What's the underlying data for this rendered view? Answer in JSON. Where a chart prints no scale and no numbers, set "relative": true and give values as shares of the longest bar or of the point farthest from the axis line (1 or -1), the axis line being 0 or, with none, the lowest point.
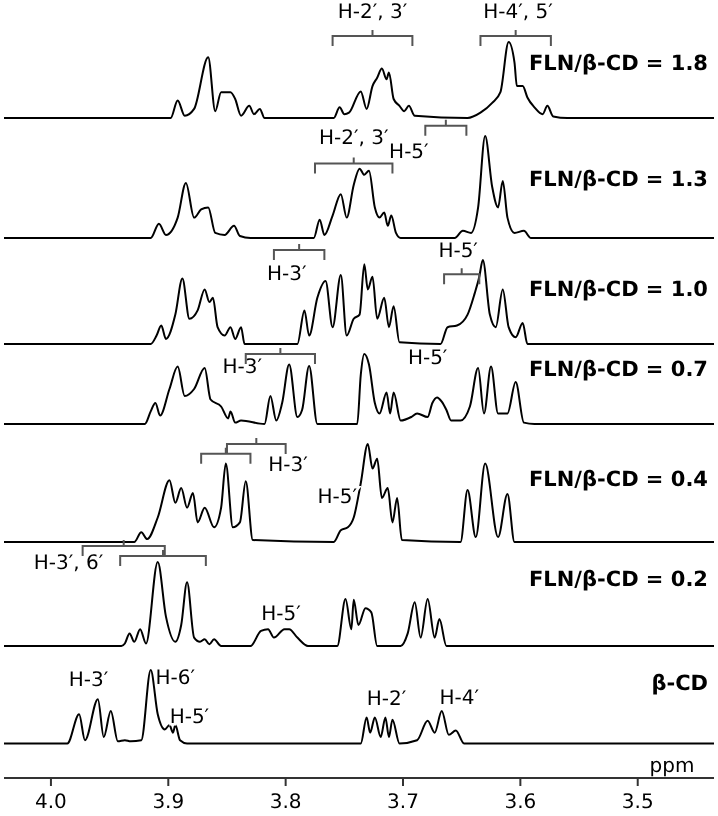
{
  "chart_data": [
    {
      "type": "line",
      "relative": true,
      "xlim": [
        4.04,
        3.435
      ],
      "tick_labels": false,
      "x": [
        4.04,
        3.898,
        3.892,
        3.886,
        3.878,
        3.866,
        3.86,
        3.855,
        3.847,
        3.843,
        3.838,
        3.831,
        3.827,
        3.822,
        3.818,
        3.759,
        3.754,
        3.75,
        3.746,
        3.736,
        3.731,
        3.726,
        3.722,
        3.718,
        3.714,
        3.712,
        3.708,
        3.703,
        3.699,
        3.695,
        3.69,
        3.645,
        3.634,
        3.624,
        3.617,
        3.61,
        3.605,
        3.603,
        3.598,
        3.594,
        3.588,
        3.581,
        3.577,
        3.572,
        3.56,
        3.435
      ],
      "series": [
        {
          "name": "FLN/β-CD = 1.8",
          "color": "#000000",
          "values": [
            0,
            0,
            0.23,
            0.03,
            0.12,
            0.8,
            0.09,
            0.34,
            0.34,
            0.25,
            0.03,
            0.16,
            0.05,
            0.12,
            0,
            0,
            0.14,
            0.05,
            0.07,
            0.35,
            0.12,
            0.42,
            0.53,
            0.65,
            0.51,
            0.6,
            0.25,
            0.16,
            0.09,
            0.16,
            0.03,
            0,
            0.07,
            0.2,
            0.34,
            1,
            0.73,
            0.42,
            0.42,
            0.27,
            0.14,
            0.05,
            0.16,
            0.02,
            0,
            0
          ]
        }
      ],
      "annotations": [
        "H-2′, 3′",
        "H-4′, 5′"
      ]
    },
    {
      "type": "line",
      "relative": true,
      "xlim": [
        4.04,
        3.435
      ],
      "tick_labels": false,
      "x": [
        4.04,
        3.915,
        3.908,
        3.902,
        3.892,
        3.885,
        3.878,
        3.872,
        3.866,
        3.86,
        3.852,
        3.844,
        3.839,
        3.83,
        3.776,
        3.771,
        3.767,
        3.76,
        3.753,
        3.748,
        3.742,
        3.737,
        3.733,
        3.729,
        3.724,
        3.72,
        3.716,
        3.713,
        3.71,
        3.706,
        3.702,
        3.656,
        3.649,
        3.642,
        3.636,
        3.63,
        3.624,
        3.619,
        3.615,
        3.611,
        3.605,
        3.597,
        3.591,
        3.435
      ],
      "series": [
        {
          "name": "FLN/β-CD = 1.3",
          "color": "#000000",
          "values": [
            0,
            0,
            0.14,
            0.03,
            0.2,
            0.54,
            0.2,
            0.28,
            0.3,
            0.05,
            0.03,
            0.12,
            0.02,
            0,
            0,
            0.18,
            0.03,
            0.22,
            0.43,
            0.2,
            0.52,
            0.68,
            0.62,
            0.66,
            0.3,
            0.2,
            0.25,
            0.12,
            0.22,
            0.05,
            0,
            0,
            0.07,
            0.05,
            0.3,
            1,
            0.5,
            0.3,
            0.56,
            0.2,
            0.05,
            0.07,
            0,
            0
          ]
        }
      ],
      "annotations": [
        "H-2′, 3′",
        "H-5′"
      ]
    },
    {
      "type": "line",
      "relative": true,
      "xlim": [
        4.04,
        3.435
      ],
      "tick_labels": false,
      "x": [
        4.04,
        3.915,
        3.91,
        3.906,
        3.902,
        3.894,
        3.888,
        3.882,
        3.875,
        3.869,
        3.865,
        3.862,
        3.858,
        3.852,
        3.847,
        3.843,
        3.838,
        3.835,
        3.79,
        3.784,
        3.78,
        3.773,
        3.766,
        3.76,
        3.753,
        3.748,
        3.742,
        3.737,
        3.733,
        3.73,
        3.726,
        3.722,
        3.716,
        3.712,
        3.708,
        3.703,
        3.668,
        3.662,
        3.654,
        3.645,
        3.639,
        3.635,
        3.632,
        3.626,
        3.621,
        3.615,
        3.61,
        3.604,
        3.598,
        3.594,
        3.435
      ],
      "series": [
        {
          "name": "FLN/β-CD = 1.0",
          "color": "#000000",
          "values": [
            0,
            0,
            0.1,
            0.22,
            0.06,
            0.35,
            0.78,
            0.3,
            0.4,
            0.65,
            0.5,
            0.55,
            0.2,
            0.1,
            0.2,
            0.06,
            0.2,
            0,
            0,
            0.4,
            0.1,
            0.55,
            0.75,
            0.2,
            0.82,
            0.1,
            0.3,
            0.35,
            0.95,
            0.65,
            0.8,
            0.3,
            0.55,
            0.2,
            0.45,
            0.02,
            0,
            0.2,
            0.22,
            0.35,
            0.6,
            0.8,
            1,
            0.35,
            0.2,
            0.65,
            0.2,
            0.08,
            0.25,
            0,
            0
          ]
        }
      ],
      "annotations": [
        "H-3′",
        "H-5′"
      ]
    },
    {
      "type": "line",
      "relative": true,
      "xlim": [
        4.04,
        3.435
      ],
      "tick_labels": false,
      "x": [
        4.04,
        3.92,
        3.915,
        3.911,
        3.907,
        3.899,
        3.892,
        3.886,
        3.878,
        3.869,
        3.864,
        3.855,
        3.849,
        3.847,
        3.843,
        3.838,
        3.818,
        3.813,
        3.808,
        3.803,
        3.797,
        3.79,
        3.786,
        3.78,
        3.773,
        3.739,
        3.736,
        3.733,
        3.729,
        3.724,
        3.72,
        3.714,
        3.711,
        3.708,
        3.702,
        3.693,
        3.688,
        3.679,
        3.675,
        3.671,
        3.667,
        3.663,
        3.659,
        3.651,
        3.643,
        3.636,
        3.631,
        3.625,
        3.619,
        3.611,
        3.604,
        3.597,
        3.588,
        3.435
      ],
      "series": [
        {
          "name": "FLN/β-CD = 0.7",
          "color": "#000000",
          "values": [
            0,
            0,
            0.18,
            0.3,
            0.12,
            0.5,
            0.82,
            0.4,
            0.5,
            0.8,
            0.35,
            0.25,
            0.08,
            0.18,
            0.02,
            0.05,
            0,
            0.4,
            0.05,
            0.3,
            0.85,
            0.1,
            0.2,
            0.83,
            0,
            0,
            0.7,
            1,
            0.85,
            0.3,
            0.15,
            0.45,
            0.15,
            0.45,
            0.05,
            0.1,
            0.15,
            0.1,
            0.3,
            0.38,
            0.32,
            0.2,
            0.05,
            0.05,
            0.25,
            0.8,
            0.15,
            0.82,
            0.15,
            0.15,
            0.6,
            0.02,
            0,
            0
          ]
        }
      ],
      "annotations": [
        "H-3′",
        "H-5′"
      ]
    },
    {
      "type": "line",
      "relative": true,
      "xlim": [
        4.04,
        3.435
      ],
      "tick_labels": false,
      "x": [
        4.04,
        3.929,
        3.923,
        3.918,
        3.909,
        3.899,
        3.894,
        3.889,
        3.884,
        3.879,
        3.875,
        3.869,
        3.861,
        3.855,
        3.851,
        3.845,
        3.839,
        3.834,
        3.828,
        3.759,
        3.753,
        3.747,
        3.742,
        3.736,
        3.73,
        3.726,
        3.722,
        3.718,
        3.713,
        3.709,
        3.705,
        3.701,
        3.651,
        3.645,
        3.638,
        3.63,
        3.619,
        3.611,
        3.605,
        3.435
      ],
      "series": [
        {
          "name": "FLN/β-CD = 0.4",
          "color": "#000000",
          "values": [
            0,
            0,
            0.1,
            0.03,
            0.25,
            0.63,
            0.4,
            0.55,
            0.35,
            0.5,
            0.2,
            0.35,
            0.15,
            0.35,
            0.8,
            0.15,
            0.2,
            0.62,
            0.02,
            0,
            0.12,
            0.15,
            0.25,
            0.6,
            1,
            0.75,
            0.85,
            0.45,
            0.55,
            0.2,
            0.45,
            0.02,
            0,
            0.53,
            0.05,
            0.8,
            0.05,
            0.49,
            0,
            0
          ]
        }
      ],
      "annotations": [
        "H-3′",
        "H-5′"
      ]
    },
    {
      "type": "line",
      "relative": true,
      "xlim": [
        4.04,
        3.435
      ],
      "tick_labels": false,
      "x": [
        4.04,
        3.94,
        3.937,
        3.933,
        3.929,
        3.924,
        3.919,
        3.909,
        3.902,
        3.894,
        3.889,
        3.884,
        3.878,
        3.873,
        3.869,
        3.865,
        3.861,
        3.855,
        3.83,
        3.821,
        3.815,
        3.81,
        3.801,
        3.797,
        3.79,
        3.781,
        3.756,
        3.749,
        3.744,
        3.742,
        3.738,
        3.732,
        3.727,
        3.722,
        3.702,
        3.696,
        3.69,
        3.685,
        3.679,
        3.673,
        3.669,
        3.663,
        3.435
      ],
      "series": [
        {
          "name": "FLN/β-CD = 0.2",
          "color": "#000000",
          "values": [
            0,
            0,
            0.03,
            0.15,
            0.05,
            0.2,
            0.03,
            1,
            0.35,
            0.05,
            0.25,
            0.76,
            0.1,
            0.05,
            0.08,
            0.02,
            0.08,
            0,
            0,
            0.18,
            0.2,
            0.1,
            0.2,
            0.2,
            0.1,
            0,
            0,
            0.56,
            0.2,
            0.55,
            0.25,
            0.45,
            0.4,
            0,
            0,
            0.15,
            0.52,
            0.1,
            0.56,
            0.1,
            0.32,
            0,
            0
          ]
        }
      ],
      "annotations": [
        "H-3′, 6′",
        "H-5′"
      ]
    },
    {
      "type": "line",
      "relative": true,
      "xlim": [
        4.04,
        3.435
      ],
      "xticks": [
        {
          "value": 4,
          "label": "4.0"
        },
        {
          "value": 3.9,
          "label": "3.9"
        },
        {
          "value": 3.8,
          "label": "3.8"
        },
        {
          "value": 3.7,
          "label": "3.7"
        },
        {
          "value": 3.6,
          "label": "3.6"
        },
        {
          "value": 3.5,
          "label": "3.5"
        }
      ],
      "xlabel": "ppm",
      "tick_labels": "x",
      "x": [
        4.04,
        3.986,
        3.976,
        3.971,
        3.96,
        3.955,
        3.949,
        3.943,
        3.937,
        3.932,
        3.923,
        3.915,
        3.909,
        3.903,
        3.899,
        3.896,
        3.894,
        3.89,
        3.884,
        3.736,
        3.731,
        3.728,
        3.724,
        3.719,
        3.715,
        3.712,
        3.709,
        3.703,
        3.688,
        3.679,
        3.673,
        3.667,
        3.661,
        3.655,
        3.648,
        3.435
      ],
      "series": [
        {
          "name": "β-CD",
          "color": "#000000",
          "values": [
            0.32,
            0.32,
            0.59,
            0.35,
            0.73,
            0.38,
            0.62,
            0.34,
            0.35,
            0.34,
            0.35,
            1,
            0.59,
            0.45,
            0.49,
            0.42,
            0.49,
            0.35,
            0.32,
            0.32,
            0.56,
            0.42,
            0.56,
            0.38,
            0.56,
            0.38,
            0.54,
            0.32,
            0.35,
            0.53,
            0.42,
            0.62,
            0.4,
            0.44,
            0.32,
            0.32
          ]
        }
      ],
      "annotations": [
        "H-3′",
        "H-6′",
        "H-5′",
        "H-2′",
        "H-4′"
      ]
    }
  ]
}
